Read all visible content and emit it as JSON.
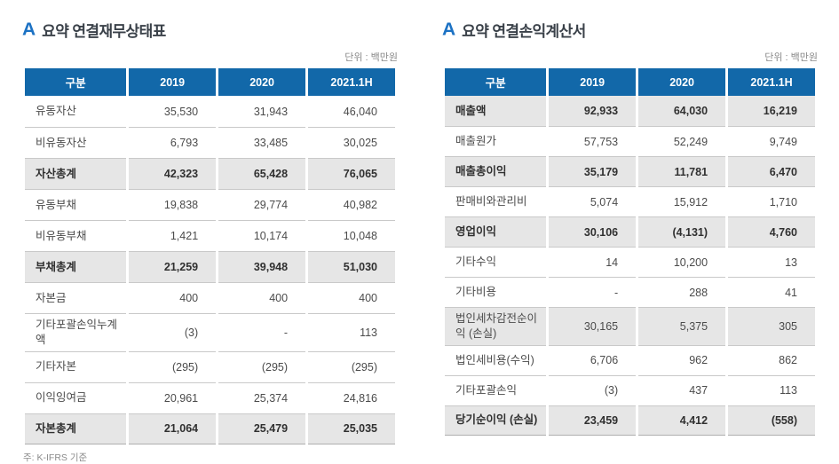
{
  "unit_label": "단위 : 백만원",
  "footnote": "주: K-IFRS 기준",
  "icons": {
    "brand_glyph": "A"
  },
  "colors": {
    "header_bg": "#1268a9",
    "brand_blue": "#1c72c4",
    "highlight_row_bg": "#e6e6e6"
  },
  "tables": [
    {
      "title": "요약 연결재무상태표",
      "columns": [
        "구분",
        "2019",
        "2020",
        "2021.1H"
      ],
      "rows": [
        {
          "label": "유동자산",
          "values": [
            "35,530",
            "31,943",
            "46,040"
          ],
          "highlight": false,
          "bold": false
        },
        {
          "label": "비유동자산",
          "values": [
            "6,793",
            "33,485",
            "30,025"
          ],
          "highlight": false,
          "bold": false
        },
        {
          "label": "자산총계",
          "values": [
            "42,323",
            "65,428",
            "76,065"
          ],
          "highlight": true,
          "bold": true
        },
        {
          "label": "유동부채",
          "values": [
            "19,838",
            "29,774",
            "40,982"
          ],
          "highlight": false,
          "bold": false
        },
        {
          "label": "비유동부채",
          "values": [
            "1,421",
            "10,174",
            "10,048"
          ],
          "highlight": false,
          "bold": false
        },
        {
          "label": "부채총계",
          "values": [
            "21,259",
            "39,948",
            "51,030"
          ],
          "highlight": true,
          "bold": true
        },
        {
          "label": "자본금",
          "values": [
            "400",
            "400",
            "400"
          ],
          "highlight": false,
          "bold": false
        },
        {
          "label": "기타포괄손익누계액",
          "values": [
            "(3)",
            "-",
            "113"
          ],
          "highlight": false,
          "bold": false
        },
        {
          "label": "기타자본",
          "values": [
            "(295)",
            "(295)",
            "(295)"
          ],
          "highlight": false,
          "bold": false
        },
        {
          "label": "이익잉여금",
          "values": [
            "20,961",
            "25,374",
            "24,816"
          ],
          "highlight": false,
          "bold": false
        },
        {
          "label": "자본총계",
          "values": [
            "21,064",
            "25,479",
            "25,035"
          ],
          "highlight": true,
          "bold": true
        }
      ]
    },
    {
      "title": "요약 연결손익계산서",
      "columns": [
        "구분",
        "2019",
        "2020",
        "2021.1H"
      ],
      "rows": [
        {
          "label": "매출액",
          "values": [
            "92,933",
            "64,030",
            "16,219"
          ],
          "highlight": true,
          "bold": true
        },
        {
          "label": "매출원가",
          "values": [
            "57,753",
            "52,249",
            "9,749"
          ],
          "highlight": false,
          "bold": false
        },
        {
          "label": "매출총이익",
          "values": [
            "35,179",
            "11,781",
            "6,470"
          ],
          "highlight": true,
          "bold": true
        },
        {
          "label": "판매비와관리비",
          "values": [
            "5,074",
            "15,912",
            "1,710"
          ],
          "highlight": false,
          "bold": false
        },
        {
          "label": "영업이익",
          "values": [
            "30,106",
            "(4,131)",
            "4,760"
          ],
          "highlight": true,
          "bold": true
        },
        {
          "label": "기타수익",
          "values": [
            "14",
            "10,200",
            "13"
          ],
          "highlight": false,
          "bold": false
        },
        {
          "label": "기타비용",
          "values": [
            "-",
            "288",
            "41"
          ],
          "highlight": false,
          "bold": false
        },
        {
          "label": "법인세차감전순이익 (손실)",
          "values": [
            "30,165",
            "5,375",
            "305"
          ],
          "highlight": true,
          "bold": false
        },
        {
          "label": "법인세비용(수익)",
          "values": [
            "6,706",
            "962",
            "862"
          ],
          "highlight": false,
          "bold": false
        },
        {
          "label": "기타포괄손익",
          "values": [
            "(3)",
            "437",
            "113"
          ],
          "highlight": false,
          "bold": false
        },
        {
          "label": "당기순이익 (손실)",
          "values": [
            "23,459",
            "4,412",
            "(558)"
          ],
          "highlight": true,
          "bold": true
        }
      ]
    }
  ]
}
